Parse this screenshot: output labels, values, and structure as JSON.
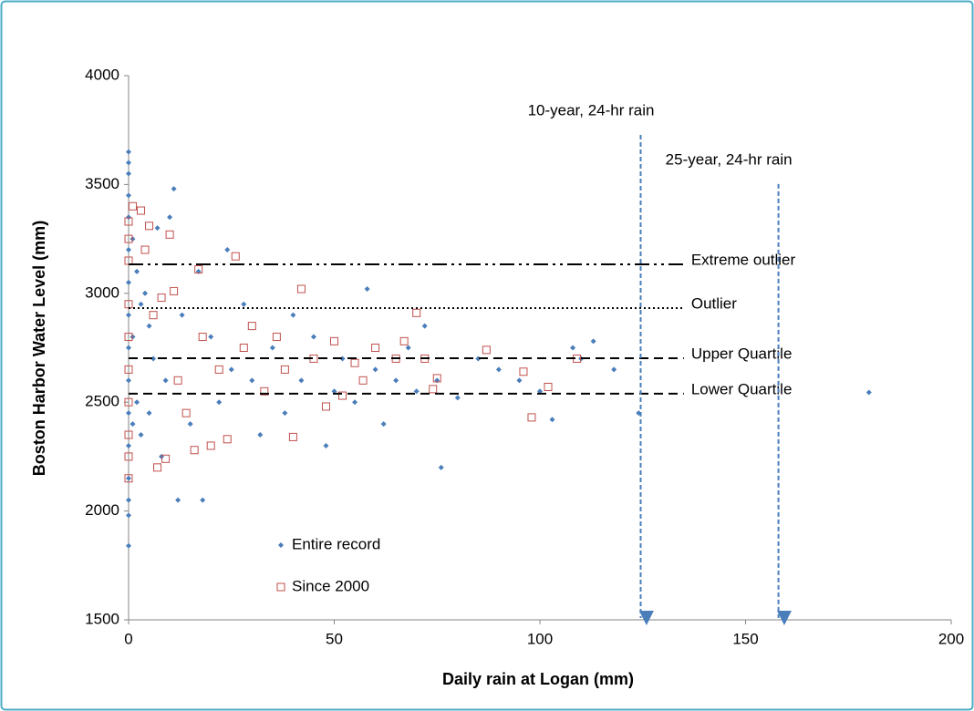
{
  "chart_data": {
    "type": "scatter",
    "x_label": "Daily rain at Logan (mm)",
    "y_label": "Boston Harbor Water Level (mm)",
    "xlim": [
      0,
      200
    ],
    "xticks": [
      0,
      50,
      100,
      150,
      200
    ],
    "ylim": [
      1500,
      4000
    ],
    "yticks": [
      1500,
      2000,
      2500,
      3000,
      3500,
      4000
    ],
    "grid": false,
    "legend": "lower left",
    "series": [
      {
        "name": "Entire record",
        "color": "#4a7ebb",
        "marker": "diamond",
        "x": [
          0,
          0,
          0,
          0,
          0,
          0,
          0,
          0,
          0,
          0,
          0,
          0,
          0,
          0,
          0,
          0,
          1,
          1,
          1,
          2,
          2,
          3,
          3,
          4,
          5,
          5,
          6,
          7,
          8,
          9,
          10,
          11,
          12,
          13,
          15,
          17,
          18,
          20,
          22,
          24,
          25,
          28,
          30,
          32,
          35,
          38,
          40,
          42,
          45,
          48,
          50,
          52,
          55,
          58,
          60,
          62,
          65,
          68,
          70,
          72,
          75,
          76,
          80,
          85,
          90,
          95,
          100,
          103,
          108,
          110,
          113,
          118,
          124,
          180
        ],
        "values": [
          3650,
          3600,
          3550,
          3450,
          3350,
          3200,
          3050,
          2900,
          2750,
          2600,
          2450,
          2300,
          2150,
          2050,
          1980,
          1840,
          3250,
          2800,
          2400,
          3100,
          2500,
          2950,
          2350,
          3000,
          2850,
          2450,
          2700,
          3300,
          2250,
          2600,
          3350,
          3480,
          2050,
          2900,
          2400,
          3100,
          2050,
          2800,
          2500,
          3200,
          2650,
          2950,
          2600,
          2350,
          2750,
          2450,
          2900,
          2600,
          2800,
          2300,
          2550,
          2700,
          2500,
          3020,
          2650,
          2400,
          2600,
          2750,
          2550,
          2850,
          2600,
          2200,
          2520,
          2700,
          2650,
          2600,
          2550,
          2420,
          2750,
          2700,
          2780,
          2650,
          2450,
          2545
        ]
      },
      {
        "name": "Since 2000",
        "color": "#c0504d",
        "marker": "square",
        "x": [
          0,
          0,
          0,
          0,
          0,
          0,
          0,
          0,
          0,
          0,
          1,
          3,
          4,
          5,
          6,
          7,
          8,
          9,
          10,
          11,
          12,
          14,
          16,
          17,
          18,
          20,
          22,
          24,
          26,
          28,
          30,
          33,
          36,
          38,
          40,
          42,
          45,
          48,
          50,
          52,
          55,
          57,
          60,
          65,
          67,
          70,
          72,
          74,
          75,
          87,
          96,
          98,
          102,
          109
        ],
        "values": [
          3330,
          3250,
          3150,
          2950,
          2800,
          2650,
          2500,
          2350,
          2250,
          2150,
          3400,
          3380,
          3200,
          3310,
          2900,
          2200,
          2980,
          2240,
          3270,
          3010,
          2600,
          2450,
          2280,
          3110,
          2800,
          2300,
          2650,
          2330,
          3170,
          2750,
          2850,
          2550,
          2800,
          2650,
          2340,
          3020,
          2700,
          2480,
          2780,
          2530,
          2680,
          2600,
          2750,
          2700,
          2780,
          2910,
          2700,
          2560,
          2610,
          2740,
          2640,
          2430,
          2570,
          2700
        ]
      }
    ],
    "reference_lines": [
      {
        "label": "Extreme outlier",
        "value": 3133,
        "dash": "16 5 3 5 3 5",
        "x_end": 135
      },
      {
        "label": "Outlier",
        "value": 2932,
        "dash": "2 3",
        "x_end": 135
      },
      {
        "label": "Upper Quartile",
        "value": 2702,
        "dash": "10 6",
        "x_end": 135
      },
      {
        "label": "Lower Quartile",
        "value": 2539,
        "dash": "10 6",
        "x_end": 135
      }
    ],
    "annotations": [
      {
        "label": "10-year, 24-hr rain",
        "x": 124.5,
        "top": 3728
      },
      {
        "label": "25-year, 24-hr rain",
        "x": 158,
        "top": 3502
      }
    ]
  }
}
